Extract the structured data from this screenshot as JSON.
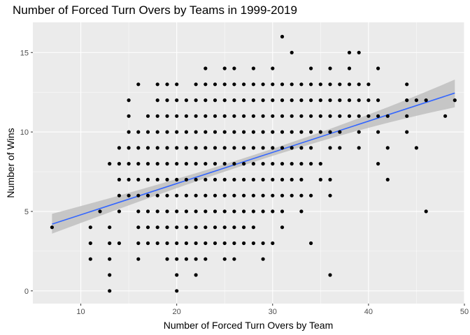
{
  "chart_data": {
    "type": "scatter",
    "title": "Number of Forced Turn Overs by Teams in 1999-2019",
    "xlabel": "Number of Forced Turn Overs by Team",
    "ylabel": "Number of Wins",
    "xlim": [
      5,
      50
    ],
    "ylim": [
      -0.8,
      16.9
    ],
    "x_ticks": [
      10,
      20,
      30,
      40,
      50
    ],
    "y_ticks": [
      0,
      5,
      10,
      15
    ],
    "grid": true,
    "colors": {
      "panel": "#ebebeb",
      "grid_major": "#ffffff",
      "points": "#000000",
      "trend_line": "#3366ff",
      "confidence_band": "#c2c2c2"
    },
    "trend": {
      "method": "linear",
      "x": [
        7,
        49
      ],
      "y": [
        4.2,
        12.45
      ],
      "ci_lower_y": [
        3.6,
        11.55
      ],
      "ci_upper_y": [
        4.85,
        13.3
      ]
    },
    "points": [
      [
        7,
        4
      ],
      [
        11,
        2
      ],
      [
        11,
        3
      ],
      [
        11,
        4
      ],
      [
        12,
        5
      ],
      [
        13,
        0
      ],
      [
        13,
        1
      ],
      [
        13,
        2
      ],
      [
        13,
        3
      ],
      [
        13,
        4
      ],
      [
        13,
        8
      ],
      [
        14,
        3
      ],
      [
        14,
        5
      ],
      [
        14,
        6
      ],
      [
        14,
        7
      ],
      [
        14,
        8
      ],
      [
        14,
        9
      ],
      [
        15,
        6
      ],
      [
        15,
        7
      ],
      [
        15,
        8
      ],
      [
        15,
        9
      ],
      [
        15,
        10
      ],
      [
        15,
        11
      ],
      [
        15,
        12
      ],
      [
        16,
        2
      ],
      [
        16,
        3
      ],
      [
        16,
        4
      ],
      [
        16,
        5
      ],
      [
        16,
        6
      ],
      [
        16,
        7
      ],
      [
        16,
        8
      ],
      [
        16,
        9
      ],
      [
        16,
        10
      ],
      [
        16,
        13
      ],
      [
        17,
        3
      ],
      [
        17,
        4
      ],
      [
        17,
        5
      ],
      [
        17,
        6
      ],
      [
        17,
        7
      ],
      [
        17,
        8
      ],
      [
        17,
        9
      ],
      [
        17,
        10
      ],
      [
        17,
        11
      ],
      [
        18,
        3
      ],
      [
        18,
        4
      ],
      [
        18,
        5
      ],
      [
        18,
        6
      ],
      [
        18,
        7
      ],
      [
        18,
        8
      ],
      [
        18,
        9
      ],
      [
        18,
        10
      ],
      [
        18,
        11
      ],
      [
        18,
        12
      ],
      [
        18,
        13
      ],
      [
        19,
        2
      ],
      [
        19,
        3
      ],
      [
        19,
        4
      ],
      [
        19,
        5
      ],
      [
        19,
        6
      ],
      [
        19,
        7
      ],
      [
        19,
        8
      ],
      [
        19,
        9
      ],
      [
        19,
        10
      ],
      [
        19,
        11
      ],
      [
        19,
        12
      ],
      [
        19,
        13
      ],
      [
        20,
        0
      ],
      [
        20,
        1
      ],
      [
        20,
        2
      ],
      [
        20,
        3
      ],
      [
        20,
        4
      ],
      [
        20,
        5
      ],
      [
        20,
        6
      ],
      [
        20,
        7
      ],
      [
        20,
        8
      ],
      [
        20,
        9
      ],
      [
        20,
        10
      ],
      [
        20,
        11
      ],
      [
        20,
        12
      ],
      [
        20,
        13
      ],
      [
        21,
        2
      ],
      [
        21,
        3
      ],
      [
        21,
        4
      ],
      [
        21,
        5
      ],
      [
        21,
        6
      ],
      [
        21,
        7
      ],
      [
        21,
        8
      ],
      [
        21,
        9
      ],
      [
        21,
        10
      ],
      [
        21,
        11
      ],
      [
        21,
        12
      ],
      [
        22,
        1
      ],
      [
        22,
        2
      ],
      [
        22,
        3
      ],
      [
        22,
        4
      ],
      [
        22,
        5
      ],
      [
        22,
        6
      ],
      [
        22,
        7
      ],
      [
        22,
        8
      ],
      [
        22,
        9
      ],
      [
        22,
        10
      ],
      [
        22,
        11
      ],
      [
        22,
        12
      ],
      [
        22,
        13
      ],
      [
        23,
        2
      ],
      [
        23,
        3
      ],
      [
        23,
        4
      ],
      [
        23,
        5
      ],
      [
        23,
        6
      ],
      [
        23,
        7
      ],
      [
        23,
        8
      ],
      [
        23,
        9
      ],
      [
        23,
        10
      ],
      [
        23,
        11
      ],
      [
        23,
        12
      ],
      [
        23,
        13
      ],
      [
        23,
        14
      ],
      [
        24,
        3
      ],
      [
        24,
        4
      ],
      [
        24,
        5
      ],
      [
        24,
        6
      ],
      [
        24,
        7
      ],
      [
        24,
        8
      ],
      [
        24,
        9
      ],
      [
        24,
        10
      ],
      [
        24,
        11
      ],
      [
        24,
        12
      ],
      [
        24,
        13
      ],
      [
        25,
        2
      ],
      [
        25,
        3
      ],
      [
        25,
        4
      ],
      [
        25,
        5
      ],
      [
        25,
        6
      ],
      [
        25,
        7
      ],
      [
        25,
        8
      ],
      [
        25,
        9
      ],
      [
        25,
        10
      ],
      [
        25,
        11
      ],
      [
        25,
        12
      ],
      [
        25,
        13
      ],
      [
        25,
        14
      ],
      [
        26,
        2
      ],
      [
        26,
        3
      ],
      [
        26,
        4
      ],
      [
        26,
        5
      ],
      [
        26,
        6
      ],
      [
        26,
        7
      ],
      [
        26,
        8
      ],
      [
        26,
        9
      ],
      [
        26,
        10
      ],
      [
        26,
        11
      ],
      [
        26,
        12
      ],
      [
        26,
        13
      ],
      [
        26,
        14
      ],
      [
        27,
        3
      ],
      [
        27,
        4
      ],
      [
        27,
        5
      ],
      [
        27,
        6
      ],
      [
        27,
        7
      ],
      [
        27,
        8
      ],
      [
        27,
        9
      ],
      [
        27,
        10
      ],
      [
        27,
        11
      ],
      [
        27,
        12
      ],
      [
        27,
        13
      ],
      [
        28,
        3
      ],
      [
        28,
        4
      ],
      [
        28,
        5
      ],
      [
        28,
        6
      ],
      [
        28,
        7
      ],
      [
        28,
        8
      ],
      [
        28,
        9
      ],
      [
        28,
        10
      ],
      [
        28,
        11
      ],
      [
        28,
        12
      ],
      [
        28,
        13
      ],
      [
        28,
        14
      ],
      [
        29,
        2
      ],
      [
        29,
        3
      ],
      [
        29,
        5
      ],
      [
        29,
        6
      ],
      [
        29,
        7
      ],
      [
        29,
        8
      ],
      [
        29,
        9
      ],
      [
        29,
        10
      ],
      [
        29,
        11
      ],
      [
        29,
        12
      ],
      [
        29,
        13
      ],
      [
        30,
        3
      ],
      [
        30,
        5
      ],
      [
        30,
        6
      ],
      [
        30,
        7
      ],
      [
        30,
        8
      ],
      [
        30,
        9
      ],
      [
        30,
        10
      ],
      [
        30,
        11
      ],
      [
        30,
        12
      ],
      [
        30,
        13
      ],
      [
        30,
        14
      ],
      [
        31,
        4
      ],
      [
        31,
        5
      ],
      [
        31,
        6
      ],
      [
        31,
        7
      ],
      [
        31,
        8
      ],
      [
        31,
        9
      ],
      [
        31,
        10
      ],
      [
        31,
        11
      ],
      [
        31,
        12
      ],
      [
        31,
        13
      ],
      [
        31,
        16
      ],
      [
        32,
        6
      ],
      [
        32,
        7
      ],
      [
        32,
        8
      ],
      [
        32,
        9
      ],
      [
        32,
        10
      ],
      [
        32,
        11
      ],
      [
        32,
        12
      ],
      [
        32,
        13
      ],
      [
        32,
        15
      ],
      [
        33,
        5
      ],
      [
        33,
        6
      ],
      [
        33,
        7
      ],
      [
        33,
        8
      ],
      [
        33,
        9
      ],
      [
        33,
        10
      ],
      [
        33,
        11
      ],
      [
        33,
        12
      ],
      [
        33,
        13
      ],
      [
        34,
        3
      ],
      [
        34,
        6
      ],
      [
        34,
        8
      ],
      [
        34,
        9
      ],
      [
        34,
        10
      ],
      [
        34,
        11
      ],
      [
        34,
        12
      ],
      [
        34,
        13
      ],
      [
        34,
        14
      ],
      [
        35,
        7
      ],
      [
        35,
        8
      ],
      [
        35,
        10
      ],
      [
        35,
        11
      ],
      [
        35,
        12
      ],
      [
        35,
        13
      ],
      [
        36,
        1
      ],
      [
        36,
        6
      ],
      [
        36,
        7
      ],
      [
        36,
        9
      ],
      [
        36,
        10
      ],
      [
        36,
        11
      ],
      [
        36,
        12
      ],
      [
        36,
        13
      ],
      [
        36,
        14
      ],
      [
        37,
        9
      ],
      [
        37,
        10
      ],
      [
        37,
        11
      ],
      [
        37,
        12
      ],
      [
        37,
        13
      ],
      [
        38,
        11
      ],
      [
        38,
        12
      ],
      [
        38,
        13
      ],
      [
        38,
        14
      ],
      [
        38,
        15
      ],
      [
        39,
        9
      ],
      [
        39,
        10
      ],
      [
        39,
        11
      ],
      [
        39,
        12
      ],
      [
        39,
        13
      ],
      [
        39,
        15
      ],
      [
        40,
        11
      ],
      [
        40,
        12
      ],
      [
        40,
        13
      ],
      [
        41,
        8
      ],
      [
        41,
        10
      ],
      [
        41,
        11
      ],
      [
        41,
        12
      ],
      [
        41,
        14
      ],
      [
        42,
        7
      ],
      [
        42,
        9
      ],
      [
        42,
        11
      ],
      [
        44,
        10
      ],
      [
        44,
        11
      ],
      [
        44,
        12
      ],
      [
        44,
        13
      ],
      [
        45,
        9
      ],
      [
        45,
        12
      ],
      [
        46,
        5
      ],
      [
        46,
        12
      ],
      [
        48,
        11
      ],
      [
        49,
        12
      ]
    ]
  }
}
